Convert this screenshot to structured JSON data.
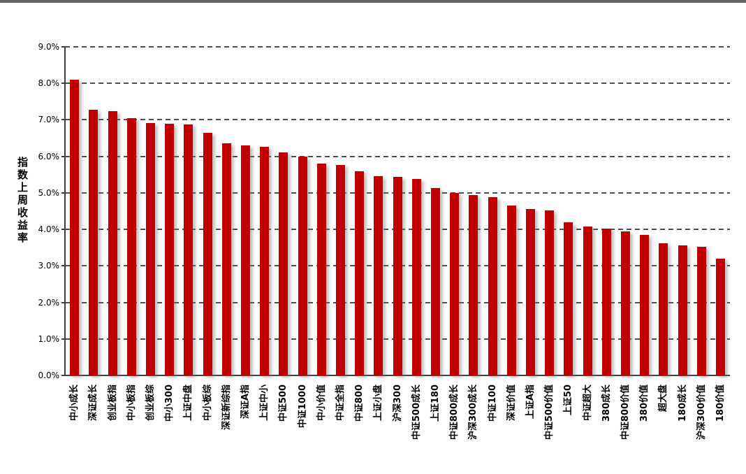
{
  "page": {
    "divider_color": "#636363"
  },
  "chart_data": {
    "type": "bar",
    "title": "",
    "ylabel": "指数上周收益率",
    "xlabel": "",
    "ylim": [
      0,
      9
    ],
    "unit": "%",
    "grid": "horizontal-dashed",
    "legend": "none",
    "bar_color": "#C00000",
    "yticks": [
      {
        "value": 0,
        "label": "0.0%"
      },
      {
        "value": 1,
        "label": "1.0%"
      },
      {
        "value": 2,
        "label": "2.0%"
      },
      {
        "value": 3,
        "label": "3.0%"
      },
      {
        "value": 4,
        "label": "4.0%"
      },
      {
        "value": 5,
        "label": "5.0%"
      },
      {
        "value": 6,
        "label": "6.0%"
      },
      {
        "value": 7,
        "label": "7.0%"
      },
      {
        "value": 8,
        "label": "8.0%"
      },
      {
        "value": 9,
        "label": "9.0%"
      }
    ],
    "categories": [
      "中小成长",
      "深证成长",
      "创业板指",
      "中小板指",
      "创业板综",
      "中小300",
      "上证中盘",
      "中小板综",
      "深证新综指",
      "深证A指",
      "上证中小",
      "中证500",
      "中证1000",
      "中小价值",
      "中证全指",
      "中证800",
      "上证小盘",
      "沪深300",
      "中证500成长",
      "上证180",
      "中证800成长",
      "沪深300成长",
      "中证100",
      "深证价值",
      "上证A指",
      "中证500价值",
      "上证50",
      "中证超大",
      "380成长",
      "中证800价值",
      "380价值",
      "超大盘",
      "180成长",
      "沪深300价值",
      "180价值"
    ],
    "values": [
      8.1,
      7.27,
      7.23,
      7.05,
      6.91,
      6.89,
      6.87,
      6.65,
      6.35,
      6.3,
      6.27,
      6.1,
      6.0,
      5.8,
      5.77,
      5.6,
      5.46,
      5.43,
      5.38,
      5.14,
      5.0,
      4.95,
      4.89,
      4.66,
      4.55,
      4.52,
      4.19,
      4.08,
      4.03,
      3.94,
      3.85,
      3.62,
      3.56,
      3.53,
      3.2
    ]
  }
}
